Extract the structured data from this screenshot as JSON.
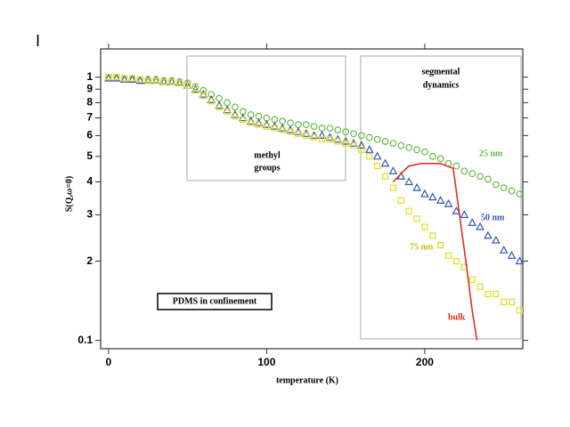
{
  "panel_label": "I",
  "chart_data": {
    "type": "scatter",
    "x_label": "temperature (K)",
    "y_label": "S(Q,ω=0)",
    "annotations": [
      "methyl",
      "groups",
      "segmental",
      "dynamics",
      "PDMS in confinement"
    ],
    "xlim": [
      -5,
      262
    ],
    "xticks": [
      0,
      100,
      200
    ],
    "ylim": [
      0.093,
      1.28
    ],
    "log_y": true,
    "yticks": [
      0.1,
      {
        "value": 0.2,
        "label": "2"
      },
      {
        "value": 0.3,
        "label": "3"
      },
      {
        "value": 0.4,
        "label": "4"
      },
      {
        "value": 0.5,
        "label": "5"
      },
      {
        "value": 0.6,
        "label": "6"
      },
      {
        "value": 0.7,
        "label": "7"
      },
      {
        "value": 0.8,
        "label": "8"
      },
      {
        "value": 0.9,
        "label": "9"
      },
      1
    ],
    "x": [
      0,
      5,
      10,
      15,
      20,
      25,
      30,
      35,
      40,
      45,
      50,
      55,
      60,
      65,
      70,
      75,
      80,
      85,
      90,
      95,
      100,
      105,
      110,
      115,
      120,
      125,
      130,
      135,
      140,
      145,
      150,
      155,
      160,
      165,
      170,
      175,
      180,
      185,
      190,
      195,
      200,
      205,
      210,
      215,
      220,
      225,
      230,
      235,
      240,
      245,
      250,
      255,
      260
    ],
    "series": [
      {
        "name": "25 nm",
        "color": "#66bb44",
        "marker": "circle",
        "values": [
          1.0,
          1.0,
          0.99,
          0.98,
          0.98,
          0.98,
          0.98,
          0.97,
          0.97,
          0.96,
          0.95,
          0.92,
          0.89,
          0.86,
          0.83,
          0.8,
          0.77,
          0.74,
          0.72,
          0.71,
          0.7,
          0.69,
          0.68,
          0.67,
          0.66,
          0.66,
          0.65,
          0.64,
          0.64,
          0.63,
          0.62,
          0.61,
          0.6,
          0.59,
          0.58,
          0.57,
          0.56,
          0.55,
          0.54,
          0.53,
          0.52,
          0.5,
          0.49,
          0.47,
          0.46,
          0.44,
          0.43,
          0.42,
          0.41,
          0.39,
          0.38,
          0.37,
          0.36
        ]
      },
      {
        "name": "50 nm",
        "color": "#3355bb",
        "marker": "triangle",
        "values": [
          0.99,
          0.99,
          0.98,
          0.98,
          0.97,
          0.97,
          0.97,
          0.96,
          0.96,
          0.95,
          0.93,
          0.9,
          0.86,
          0.82,
          0.78,
          0.75,
          0.72,
          0.7,
          0.68,
          0.67,
          0.66,
          0.65,
          0.64,
          0.63,
          0.62,
          0.61,
          0.6,
          0.6,
          0.59,
          0.58,
          0.57,
          0.56,
          0.55,
          0.53,
          0.5,
          0.47,
          0.44,
          0.42,
          0.4,
          0.38,
          0.36,
          0.35,
          0.34,
          0.33,
          0.31,
          0.3,
          0.28,
          0.27,
          0.25,
          0.24,
          0.22,
          0.21,
          0.2
        ]
      },
      {
        "name": "75 nm",
        "color": "#e6dc1e",
        "marker": "square",
        "values": [
          1.0,
          1.0,
          0.99,
          0.99,
          0.98,
          0.97,
          0.97,
          0.96,
          0.96,
          0.95,
          0.93,
          0.89,
          0.85,
          0.81,
          0.77,
          0.74,
          0.71,
          0.69,
          0.67,
          0.66,
          0.65,
          0.64,
          0.63,
          0.62,
          0.61,
          0.6,
          0.59,
          0.58,
          0.58,
          0.57,
          0.56,
          0.55,
          0.53,
          0.5,
          0.46,
          0.42,
          0.38,
          0.34,
          0.31,
          0.29,
          0.27,
          0.25,
          0.23,
          0.21,
          0.2,
          0.19,
          0.17,
          0.16,
          0.15,
          0.15,
          0.14,
          0.14,
          0.13
        ]
      },
      {
        "name": "bulk",
        "color": "#e03020",
        "marker": "line",
        "x": [
          180,
          185,
          190,
          198,
          210,
          218,
          222,
          226,
          230,
          233
        ],
        "values": [
          0.4,
          0.43,
          0.46,
          0.47,
          0.47,
          0.45,
          0.3,
          0.2,
          0.13,
          0.1
        ]
      }
    ]
  }
}
